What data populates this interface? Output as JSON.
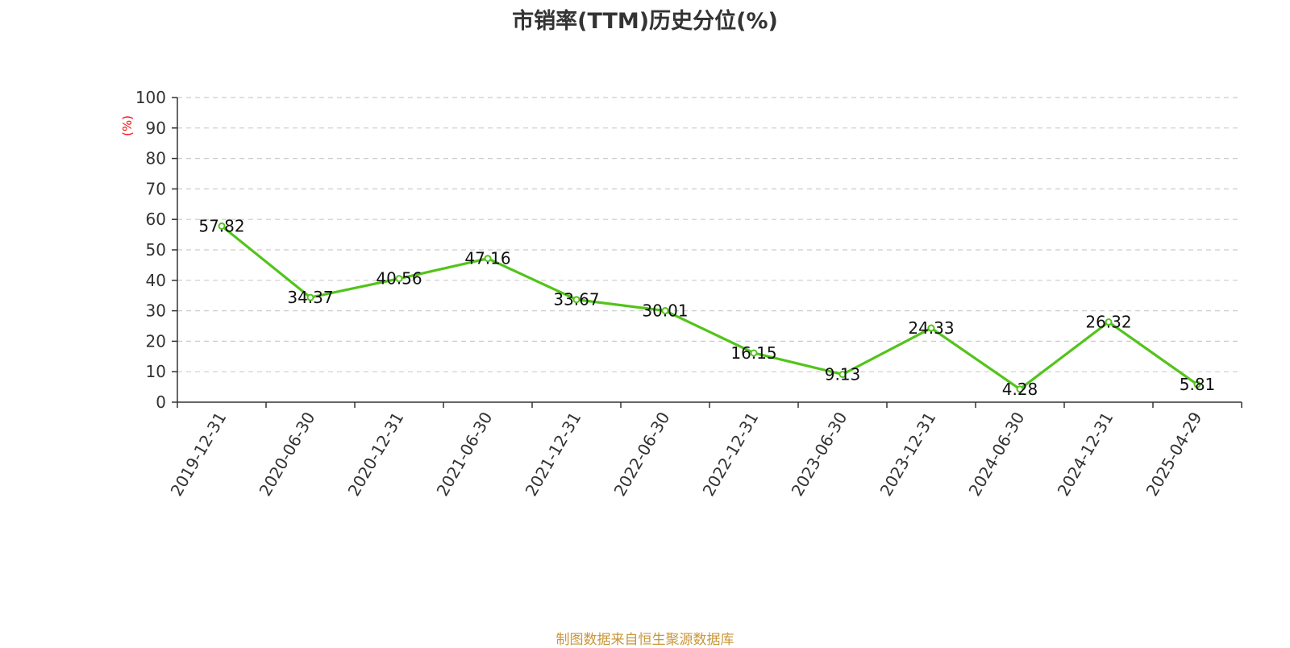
{
  "chart_data": {
    "type": "line",
    "title": "市销率(TTM)历史分位(%)",
    "ylabel": "(%)",
    "xlabel": "",
    "categories": [
      "2019-12-31",
      "2020-06-30",
      "2020-12-31",
      "2021-06-30",
      "2021-12-31",
      "2022-06-30",
      "2022-12-31",
      "2023-06-30",
      "2023-12-31",
      "2024-06-30",
      "2024-12-31",
      "2025-04-29"
    ],
    "series": [
      {
        "values": [
          57.82,
          34.37,
          40.56,
          47.16,
          33.67,
          30.01,
          16.15,
          9.13,
          24.33,
          4.28,
          26.32,
          5.81
        ]
      }
    ],
    "ylim": [
      0,
      100
    ],
    "yticks": [
      0,
      10,
      20,
      30,
      40,
      50,
      60,
      70,
      80,
      90,
      100
    ],
    "grid": true,
    "colors": {
      "line": "#52c41a",
      "grid": "#cccccc",
      "axis": "#333333",
      "ylabel": "#ff0000"
    }
  },
  "footer": {
    "source": "制图数据来自恒生聚源数据库"
  }
}
